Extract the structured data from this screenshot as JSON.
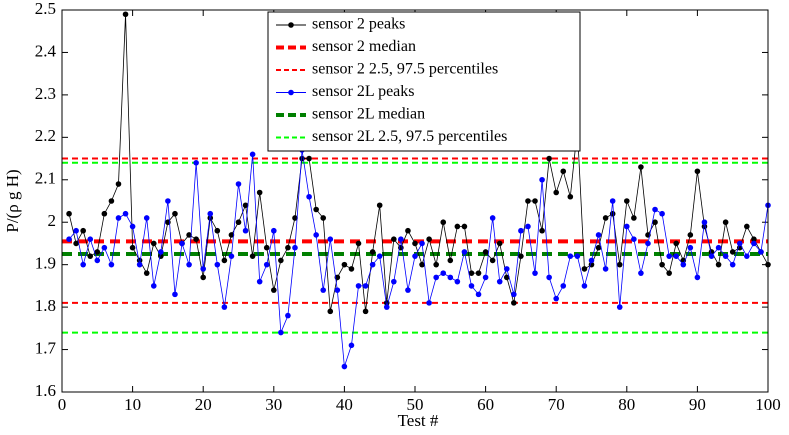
{
  "chart_data": {
    "type": "line",
    "xlabel": "Test #",
    "ylabel": "P/(ρ g H)",
    "x": [
      1,
      2,
      3,
      4,
      5,
      6,
      7,
      8,
      9,
      10,
      11,
      12,
      13,
      14,
      15,
      16,
      17,
      18,
      19,
      20,
      21,
      22,
      23,
      24,
      25,
      26,
      27,
      28,
      29,
      30,
      31,
      32,
      33,
      34,
      35,
      36,
      37,
      38,
      39,
      40,
      41,
      42,
      43,
      44,
      45,
      46,
      47,
      48,
      49,
      50,
      51,
      52,
      53,
      54,
      55,
      56,
      57,
      58,
      59,
      60,
      61,
      62,
      63,
      64,
      65,
      66,
      67,
      68,
      69,
      70,
      71,
      72,
      73,
      74,
      75,
      76,
      77,
      78,
      79,
      80,
      81,
      82,
      83,
      84,
      85,
      86,
      87,
      88,
      89,
      90,
      91,
      92,
      93,
      94,
      95,
      96,
      97,
      98,
      99,
      100
    ],
    "series": [
      {
        "name": "sensor 2 peaks",
        "color": "#000000",
        "values": [
          2.02,
          1.95,
          1.98,
          1.92,
          1.93,
          2.02,
          2.05,
          2.09,
          2.49,
          1.94,
          1.91,
          1.88,
          1.95,
          1.92,
          2.0,
          2.02,
          1.95,
          1.97,
          1.96,
          1.87,
          2.01,
          1.98,
          1.91,
          1.97,
          2.0,
          2.04,
          1.92,
          2.07,
          1.94,
          1.84,
          1.91,
          1.94,
          2.01,
          2.15,
          2.15,
          2.03,
          2.01,
          1.79,
          1.87,
          1.9,
          1.89,
          1.95,
          1.79,
          1.93,
          2.04,
          1.81,
          1.96,
          1.94,
          1.98,
          1.95,
          1.9,
          1.96,
          1.9,
          2.0,
          1.91,
          1.99,
          1.99,
          1.88,
          1.88,
          1.93,
          1.91,
          1.95,
          1.87,
          1.81,
          1.92,
          2.05,
          2.05,
          1.98,
          2.15,
          2.07,
          2.12,
          2.06,
          2.22,
          1.89,
          1.9,
          1.94,
          2.01,
          2.02,
          1.9,
          2.05,
          2.01,
          2.13,
          1.97,
          2.0,
          1.9,
          1.88,
          1.95,
          1.91,
          1.97,
          2.12,
          1.99,
          1.93,
          1.9,
          2.0,
          1.93,
          1.94,
          1.99,
          1.96,
          1.93,
          1.9
        ]
      },
      {
        "name": "sensor 2L peaks",
        "color": "#0000ff",
        "values": [
          1.96,
          1.98,
          1.9,
          1.96,
          1.91,
          1.94,
          1.9,
          2.01,
          2.02,
          1.99,
          1.9,
          2.01,
          1.85,
          1.93,
          2.05,
          1.83,
          1.95,
          1.9,
          2.14,
          1.89,
          2.02,
          1.9,
          1.8,
          1.92,
          2.09,
          1.98,
          2.16,
          1.86,
          1.9,
          1.98,
          1.74,
          1.78,
          1.94,
          2.17,
          2.06,
          1.97,
          1.84,
          1.96,
          1.84,
          1.66,
          1.71,
          1.85,
          1.85,
          1.9,
          1.92,
          1.8,
          1.86,
          1.96,
          1.84,
          1.92,
          1.95,
          1.81,
          1.87,
          1.88,
          1.87,
          1.86,
          1.93,
          1.85,
          1.83,
          1.87,
          2.01,
          1.86,
          1.89,
          1.83,
          1.98,
          1.99,
          1.88,
          2.1,
          1.87,
          1.82,
          1.85,
          1.92,
          1.92,
          1.85,
          1.91,
          1.97,
          1.89,
          2.05,
          1.8,
          1.99,
          1.96,
          1.88,
          1.95,
          2.03,
          2.02,
          1.92,
          1.92,
          1.9,
          1.94,
          1.87,
          2.0,
          1.92,
          1.94,
          1.92,
          1.9,
          1.95,
          1.92,
          1.95,
          1.93,
          2.04
        ]
      }
    ],
    "reference_lines": [
      {
        "name": "sensor 2 median",
        "color": "#ff0000",
        "width": 4,
        "values": [
          1.955
        ]
      },
      {
        "name": "sensor 2 2.5, 97.5 percentiles",
        "color": "#ff0000",
        "width": 2,
        "values": [
          2.15,
          1.81
        ]
      },
      {
        "name": "sensor 2L median",
        "color": "#008000",
        "width": 4,
        "values": [
          1.925
        ]
      },
      {
        "name": "sensor 2L 2.5, 97.5 percentiles",
        "color": "#00ff00",
        "width": 2,
        "values": [
          2.14,
          1.74
        ]
      }
    ],
    "legend_order": [
      "series.0",
      "reference_lines.0",
      "reference_lines.1",
      "series.1",
      "reference_lines.2",
      "reference_lines.3"
    ],
    "legend": "top",
    "xlim": [
      0,
      100
    ],
    "xticks": [
      0,
      10,
      20,
      30,
      40,
      50,
      60,
      70,
      80,
      90,
      100
    ],
    "ylim": [
      1.6,
      2.5
    ],
    "yticks": [
      1.6,
      1.7,
      1.8,
      1.9,
      2,
      2.1,
      2.2,
      2.3,
      2.4,
      2.5
    ],
    "grid": false
  }
}
